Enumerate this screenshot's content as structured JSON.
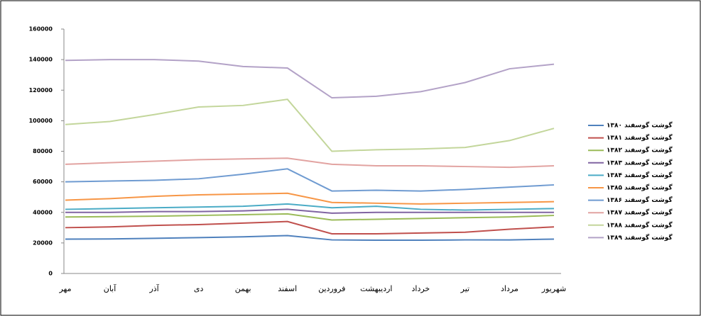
{
  "chart_data": {
    "type": "line",
    "categories": [
      "مهر",
      "آبان",
      "آذر",
      "دی",
      "بهمن",
      "اسفند",
      "فروردین",
      "اردیبهشت",
      "خرداد",
      "تیر",
      "مرداد",
      "شهریور"
    ],
    "series": [
      {
        "name": "گوشت گوسفند ۱۳۸۰",
        "color": "#4f81bd",
        "values": [
          22500,
          22600,
          23000,
          23500,
          24000,
          24800,
          22000,
          21800,
          21800,
          22000,
          22000,
          22500
        ]
      },
      {
        "name": "گوشت گوسفند ۱۳۸۱",
        "color": "#c0504d",
        "values": [
          30000,
          30500,
          31500,
          32000,
          33000,
          34000,
          26000,
          26000,
          26500,
          27000,
          29000,
          30500
        ]
      },
      {
        "name": "گوشت گوسفند ۱۳۸۲",
        "color": "#9bbb59",
        "values": [
          37000,
          37200,
          37500,
          38000,
          38500,
          39000,
          35000,
          35500,
          36000,
          36500,
          37000,
          38000
        ]
      },
      {
        "name": "گوشت گوسفند ۱۳۸۳",
        "color": "#8064a2",
        "values": [
          40000,
          40000,
          40500,
          40500,
          41000,
          42000,
          39500,
          40000,
          40000,
          40000,
          40000,
          40000
        ]
      },
      {
        "name": "گوشت گوسفند ۱۳۸۴",
        "color": "#4bacc6",
        "values": [
          42000,
          42500,
          43000,
          43500,
          44000,
          45500,
          43000,
          44000,
          42000,
          41500,
          42000,
          42500
        ]
      },
      {
        "name": "گوشت گوسفند ۱۳۸۵",
        "color": "#f79646",
        "values": [
          48000,
          49000,
          50500,
          51500,
          52000,
          52500,
          46500,
          46000,
          45500,
          46000,
          46500,
          47000
        ]
      },
      {
        "name": "گوشت گوسفند ۱۳۸۶",
        "color": "#6f9bd1",
        "values": [
          60000,
          60500,
          61000,
          62000,
          65000,
          68500,
          54000,
          54500,
          54000,
          55000,
          56500,
          58000
        ]
      },
      {
        "name": "گوشت گوسفند ۱۳۸۷",
        "color": "#e2a3a1",
        "values": [
          71500,
          72500,
          73500,
          74500,
          75000,
          75500,
          71500,
          70500,
          70500,
          70000,
          69500,
          70500
        ]
      },
      {
        "name": "گوشت گوسفند ۱۳۸۸",
        "color": "#c3d69b",
        "values": [
          97500,
          99500,
          104000,
          109000,
          110000,
          114000,
          80000,
          81000,
          81500,
          82500,
          87000,
          95000
        ]
      },
      {
        "name": "گوشت گوسفند ۱۳۸۹",
        "color": "#b3a2c7",
        "values": [
          139500,
          140000,
          140000,
          139000,
          135500,
          134500,
          115000,
          116000,
          119000,
          125000,
          134000,
          137000
        ]
      }
    ],
    "ylim": [
      0,
      160000
    ],
    "yticks": [
      0,
      20000,
      40000,
      60000,
      80000,
      100000,
      120000,
      140000,
      160000
    ]
  }
}
